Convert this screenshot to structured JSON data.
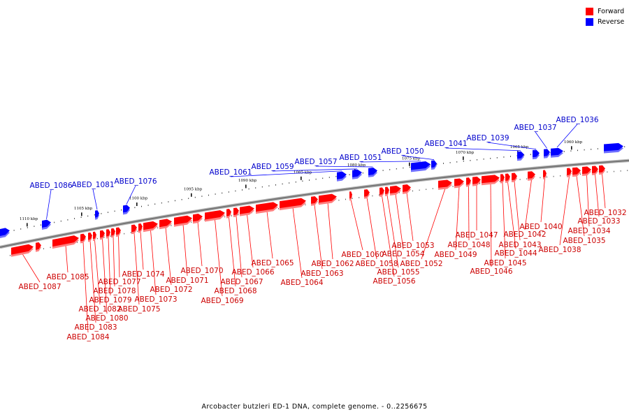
{
  "legend": {
    "forward_label": "Forward",
    "reverse_label": "Reverse",
    "forward_color": "#ff0000",
    "reverse_color": "#0000ff"
  },
  "caption": "Arcobacter butzleri ED-1 DNA, complete genome. - 0..2256675",
  "scale_labels": [
    "1110 kbp",
    "1105 kbp",
    "1100 kbp",
    "1095 kbp",
    "1090 kbp",
    "1085 kbp",
    "1080 kbp",
    "1075 kbp",
    "1070 kbp",
    "1065 kbp",
    "1060 kbp"
  ],
  "reverse_genes": [
    "ABED_1086",
    "ABED_1081",
    "ABED_1076",
    "ABED_1061",
    "ABED_1059",
    "ABED_1057",
    "ABED_1051",
    "ABED_1050",
    "ABED_1041",
    "ABED_1039",
    "ABED_1037",
    "ABED_1036"
  ],
  "forward_genes": [
    "ABED_1087",
    "ABED_1085",
    "ABED_1084",
    "ABED_1083",
    "ABED_1082",
    "ABED_1080",
    "ABED_1079",
    "ABED_1078",
    "ABED_1077",
    "ABED_1075",
    "ABED_1074",
    "ABED_1073",
    "ABED_1072",
    "ABED_1071",
    "ABED_1070",
    "ABED_1069",
    "ABED_1068",
    "ABED_1067",
    "ABED_1066",
    "ABED_1065",
    "ABED_1064",
    "ABED_1063",
    "ABED_1062",
    "ABED_1060",
    "ABED_1058",
    "ABED_1056",
    "ABED_1055",
    "ABED_1054",
    "ABED_1053",
    "ABED_1052",
    "ABED_1049",
    "ABED_1048",
    "ABED_1047",
    "ABED_1046",
    "ABED_1045",
    "ABED_1044",
    "ABED_1043",
    "ABED_1042",
    "ABED_1040",
    "ABED_1038",
    "ABED_1035",
    "ABED_1034",
    "ABED_1033",
    "ABED_1032"
  ]
}
